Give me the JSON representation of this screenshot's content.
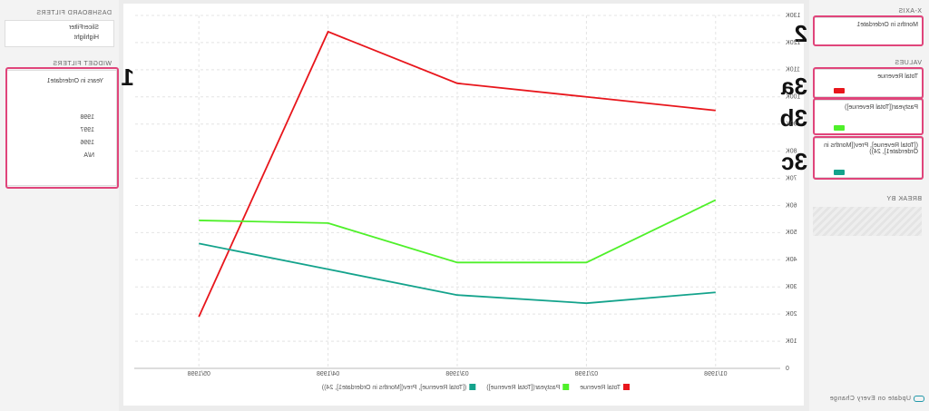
{
  "left_panel": {
    "x_axis": {
      "title": "X-AXIS",
      "item": "Months in Orderdate1"
    },
    "values": {
      "title": "VALUES",
      "items": [
        "Total Revenue",
        "Pastyear([Total Revenue])",
        "([Total Revenue], Prev([Months in Orderdate1], 24))"
      ]
    },
    "break_by": {
      "title": "BREAK BY"
    },
    "update": "Update on Every Change"
  },
  "right_panel": {
    "dashboard_filters": {
      "title": "DASHBOARD FILTERS",
      "options": [
        "SlicerFilter",
        "Highlight"
      ]
    },
    "widget_filters": {
      "title": "WIDGET FILTERS",
      "field": "Years in Orderdate1",
      "options": [
        "1998",
        "1997",
        "1996",
        "N/A"
      ]
    }
  },
  "annotations": [
    "1",
    "2",
    "3a",
    "3b",
    "3c"
  ],
  "chart_data": {
    "type": "line",
    "categories": [
      "01/1998",
      "02/1998",
      "03/1998",
      "04/1998",
      "05/1998"
    ],
    "series": [
      {
        "name": "Total Revenue",
        "color": "#e8161c",
        "values": [
          95000,
          100000,
          105000,
          124000,
          19000
        ]
      },
      {
        "name": "Pastyear([Total Revenue])",
        "color": "#4ff02a",
        "values": [
          62000,
          39000,
          39000,
          53500,
          54500
        ]
      },
      {
        "name": "([Total Revenue], Prev([Months in Orderdate1], 24))",
        "color": "#14a38c",
        "values": [
          28000,
          24000,
          27000,
          36500,
          46000
        ]
      }
    ],
    "ylim": [
      0,
      130000
    ],
    "yticks": [
      0,
      {
        "value": 10000,
        "label": "10K"
      },
      {
        "value": 20000,
        "label": "20K"
      },
      {
        "value": 30000,
        "label": "30K"
      },
      {
        "value": 40000,
        "label": "40K"
      },
      {
        "value": 50000,
        "label": "50K"
      },
      {
        "value": 60000,
        "label": "60K"
      },
      {
        "value": 70000,
        "label": "70K"
      },
      {
        "value": 80000,
        "label": "80K"
      },
      {
        "value": 90000,
        "label": "90K"
      },
      {
        "value": 100000,
        "label": "100K"
      },
      {
        "value": 110000,
        "label": "110K"
      },
      {
        "value": 120000,
        "label": "120K"
      },
      {
        "value": 130000,
        "label": "130K"
      }
    ],
    "grid": true
  }
}
